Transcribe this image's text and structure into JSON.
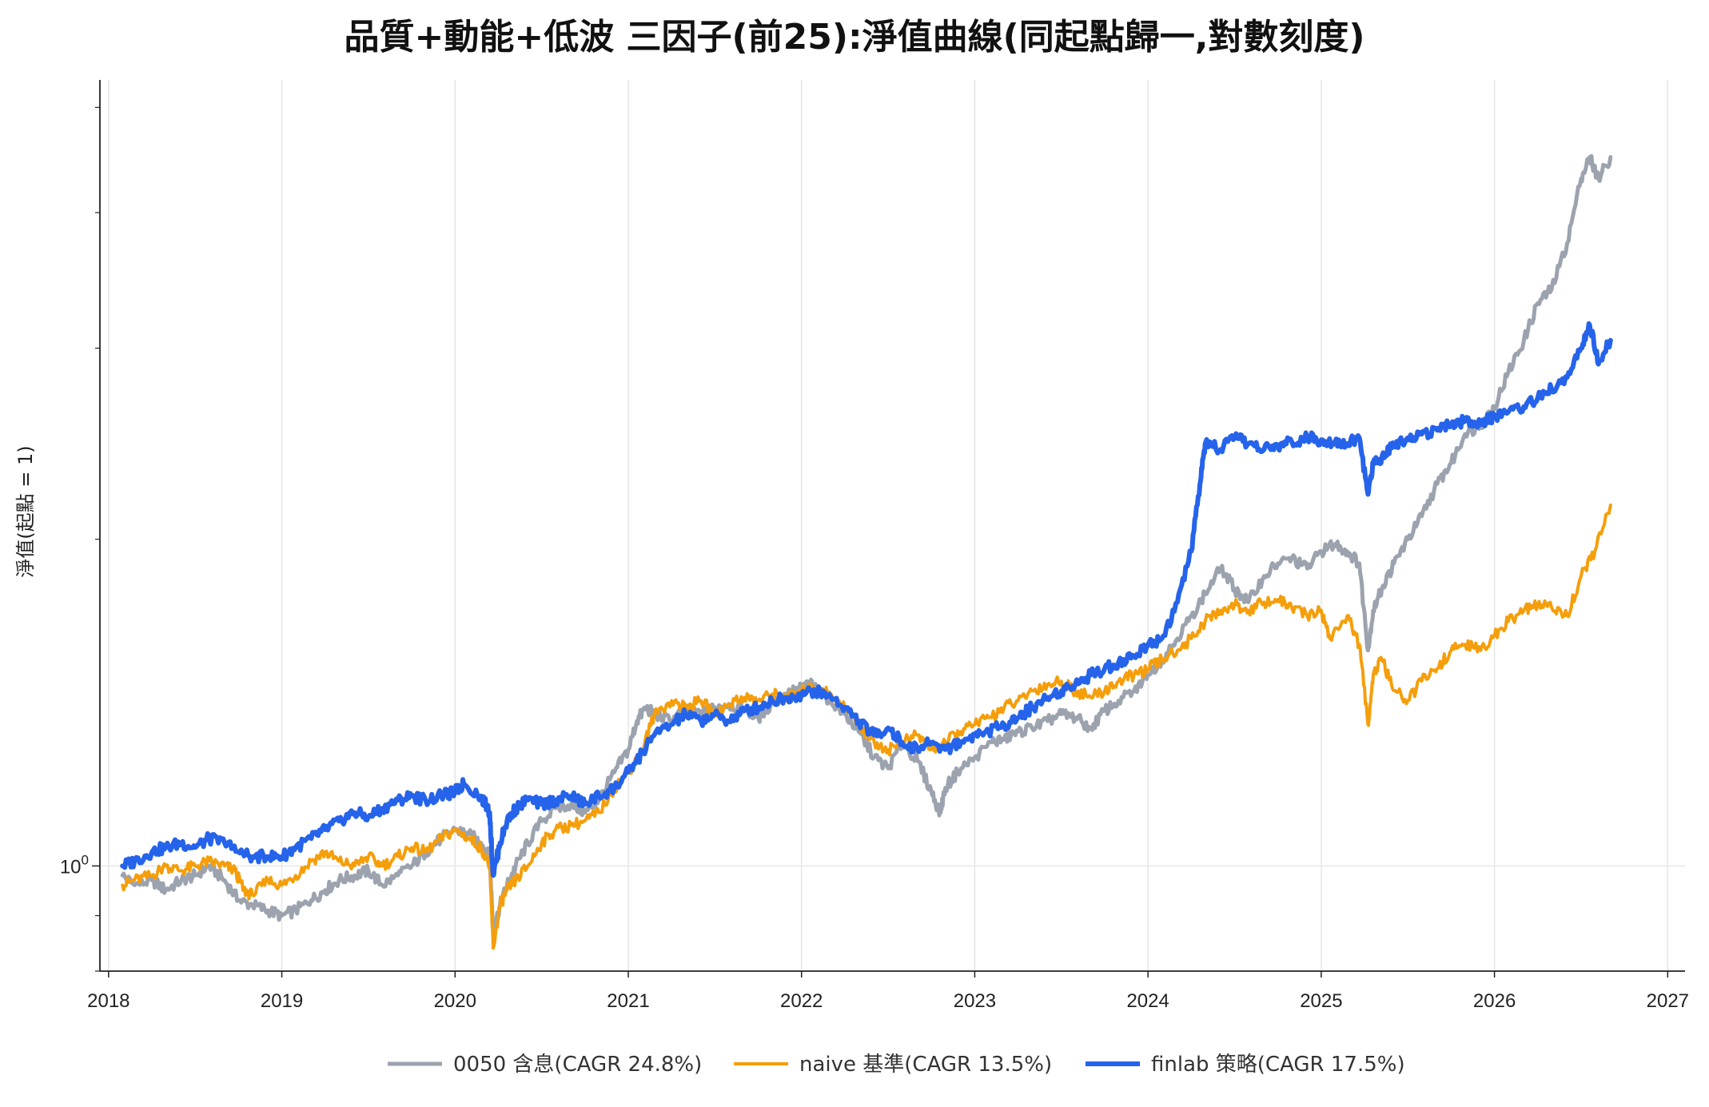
{
  "chart_data": {
    "type": "line",
    "title": "品質+動能+低波 三因子(前25):淨值曲線(同起點歸一,對數刻度)",
    "ylabel": "淨值(起點 = 1)",
    "xlabel": "",
    "yscale": "log",
    "ylim": [
      0.8,
      5.3
    ],
    "xlim": [
      2017.95,
      2027.1
    ],
    "grid": true,
    "legend_position": "bottom-center",
    "x_ticks": [
      "2018",
      "2019",
      "2020",
      "2021",
      "2022",
      "2023",
      "2024",
      "2025",
      "2026",
      "2027"
    ],
    "y_tick_labels": [
      {
        "value": 1,
        "base": "10",
        "exp": "0"
      }
    ],
    "series": [
      {
        "name": "0050 含息(CAGR 24.8%)",
        "color": "#9ca3af",
        "width": 5,
        "x": [
          2018.08,
          2018.15,
          2018.25,
          2018.33,
          2018.42,
          2018.5,
          2018.58,
          2018.67,
          2018.75,
          2018.83,
          2018.92,
          2019.0,
          2019.08,
          2019.17,
          2019.25,
          2019.33,
          2019.42,
          2019.5,
          2019.58,
          2019.67,
          2019.75,
          2019.83,
          2019.92,
          2020.0,
          2020.08,
          2020.15,
          2020.2,
          2020.22,
          2020.26,
          2020.3,
          2020.35,
          2020.42,
          2020.5,
          2020.58,
          2020.67,
          2020.75,
          2020.83,
          2020.92,
          2021.0,
          2021.05,
          2021.1,
          2021.15,
          2021.25,
          2021.33,
          2021.42,
          2021.5,
          2021.58,
          2021.67,
          2021.75,
          2021.83,
          2021.92,
          2022.0,
          2022.05,
          2022.1,
          2022.17,
          2022.25,
          2022.33,
          2022.42,
          2022.5,
          2022.58,
          2022.67,
          2022.75,
          2022.8,
          2022.83,
          2022.9,
          2023.0,
          2023.1,
          2023.17,
          2023.25,
          2023.33,
          2023.42,
          2023.5,
          2023.58,
          2023.67,
          2023.75,
          2023.83,
          2023.92,
          2024.0,
          2024.08,
          2024.17,
          2024.25,
          2024.33,
          2024.42,
          2024.5,
          2024.58,
          2024.67,
          2024.75,
          2024.83,
          2024.92,
          2025.0,
          2025.08,
          2025.15,
          2025.22,
          2025.27,
          2025.3,
          2025.35,
          2025.42,
          2025.5,
          2025.58,
          2025.67,
          2025.75,
          2025.83,
          2025.92,
          2026.0,
          2026.08,
          2026.17,
          2026.25,
          2026.33,
          2026.42,
          2026.5,
          2026.55,
          2026.6,
          2026.67
        ],
        "values": [
          0.98,
          0.96,
          0.97,
          0.95,
          0.97,
          0.98,
          1.0,
          0.97,
          0.93,
          0.92,
          0.91,
          0.9,
          0.91,
          0.93,
          0.95,
          0.97,
          0.98,
          0.99,
          0.96,
          0.98,
          1.0,
          1.03,
          1.06,
          1.08,
          1.07,
          1.05,
          1.02,
          0.87,
          0.92,
          0.96,
          1.0,
          1.05,
          1.1,
          1.13,
          1.14,
          1.12,
          1.15,
          1.22,
          1.28,
          1.36,
          1.4,
          1.38,
          1.36,
          1.4,
          1.38,
          1.4,
          1.41,
          1.39,
          1.37,
          1.41,
          1.44,
          1.46,
          1.47,
          1.45,
          1.42,
          1.38,
          1.33,
          1.26,
          1.23,
          1.3,
          1.25,
          1.17,
          1.12,
          1.18,
          1.22,
          1.26,
          1.3,
          1.31,
          1.33,
          1.34,
          1.36,
          1.38,
          1.37,
          1.34,
          1.39,
          1.42,
          1.45,
          1.5,
          1.55,
          1.62,
          1.7,
          1.78,
          1.88,
          1.8,
          1.75,
          1.85,
          1.9,
          1.92,
          1.88,
          1.95,
          1.98,
          1.95,
          1.9,
          1.58,
          1.72,
          1.8,
          1.9,
          2.0,
          2.1,
          2.25,
          2.35,
          2.5,
          2.55,
          2.65,
          2.85,
          3.05,
          3.3,
          3.4,
          3.75,
          4.3,
          4.5,
          4.3,
          4.5
        ]
      },
      {
        "name": "naive 基準(CAGR 13.5%)",
        "color": "#f59e0b",
        "width": 4,
        "x": [
          2018.08,
          2018.15,
          2018.25,
          2018.33,
          2018.42,
          2018.5,
          2018.58,
          2018.67,
          2018.73,
          2018.78,
          2018.83,
          2018.92,
          2019.0,
          2019.08,
          2019.17,
          2019.25,
          2019.33,
          2019.42,
          2019.5,
          2019.58,
          2019.67,
          2019.75,
          2019.83,
          2019.92,
          2020.0,
          2020.08,
          2020.15,
          2020.2,
          2020.22,
          2020.26,
          2020.3,
          2020.35,
          2020.42,
          2020.5,
          2020.58,
          2020.67,
          2020.75,
          2020.83,
          2020.92,
          2021.0,
          2021.08,
          2021.15,
          2021.25,
          2021.33,
          2021.42,
          2021.5,
          2021.58,
          2021.67,
          2021.75,
          2021.83,
          2021.92,
          2022.0,
          2022.08,
          2022.17,
          2022.25,
          2022.33,
          2022.42,
          2022.5,
          2022.58,
          2022.67,
          2022.75,
          2022.83,
          2022.92,
          2023.0,
          2023.08,
          2023.17,
          2023.25,
          2023.33,
          2023.42,
          2023.5,
          2023.58,
          2023.67,
          2023.75,
          2023.83,
          2023.92,
          2024.0,
          2024.08,
          2024.17,
          2024.25,
          2024.33,
          2024.42,
          2024.5,
          2024.58,
          2024.67,
          2024.75,
          2024.83,
          2024.92,
          2025.0,
          2025.05,
          2025.15,
          2025.22,
          2025.27,
          2025.3,
          2025.35,
          2025.42,
          2025.5,
          2025.58,
          2025.67,
          2025.75,
          2025.83,
          2025.92,
          2026.0,
          2026.08,
          2026.17,
          2026.25,
          2026.33,
          2026.42,
          2026.5,
          2026.58,
          2026.67
        ],
        "values": [
          0.96,
          0.97,
          0.98,
          1.0,
          0.99,
          1.0,
          1.01,
          1.0,
          0.99,
          0.95,
          0.94,
          0.97,
          0.96,
          0.98,
          1.01,
          1.03,
          1.01,
          1.0,
          1.02,
          1.0,
          1.02,
          1.04,
          1.03,
          1.06,
          1.08,
          1.06,
          1.04,
          1.0,
          0.84,
          0.92,
          0.95,
          0.97,
          1.0,
          1.05,
          1.08,
          1.09,
          1.1,
          1.12,
          1.18,
          1.22,
          1.28,
          1.38,
          1.42,
          1.4,
          1.42,
          1.38,
          1.41,
          1.43,
          1.42,
          1.44,
          1.43,
          1.45,
          1.46,
          1.44,
          1.4,
          1.35,
          1.3,
          1.28,
          1.3,
          1.32,
          1.28,
          1.3,
          1.33,
          1.35,
          1.37,
          1.4,
          1.42,
          1.45,
          1.47,
          1.48,
          1.45,
          1.43,
          1.45,
          1.48,
          1.5,
          1.52,
          1.55,
          1.58,
          1.62,
          1.68,
          1.72,
          1.74,
          1.72,
          1.75,
          1.76,
          1.73,
          1.7,
          1.72,
          1.62,
          1.7,
          1.6,
          1.35,
          1.5,
          1.55,
          1.45,
          1.42,
          1.48,
          1.52,
          1.58,
          1.6,
          1.58,
          1.63,
          1.68,
          1.72,
          1.74,
          1.73,
          1.7,
          1.85,
          1.95,
          2.15
        ]
      },
      {
        "name": "finlab 策略(CAGR 17.5%)",
        "color": "#2563eb",
        "width": 6,
        "x": [
          2018.08,
          2018.15,
          2018.25,
          2018.33,
          2018.42,
          2018.5,
          2018.58,
          2018.67,
          2018.75,
          2018.83,
          2018.92,
          2019.0,
          2019.08,
          2019.17,
          2019.25,
          2019.33,
          2019.42,
          2019.5,
          2019.58,
          2019.67,
          2019.75,
          2019.83,
          2019.92,
          2020.0,
          2020.05,
          2020.15,
          2020.2,
          2020.22,
          2020.26,
          2020.3,
          2020.35,
          2020.42,
          2020.5,
          2020.58,
          2020.67,
          2020.75,
          2020.83,
          2020.92,
          2021.0,
          2021.08,
          2021.15,
          2021.25,
          2021.33,
          2021.42,
          2021.5,
          2021.58,
          2021.67,
          2021.75,
          2021.83,
          2021.92,
          2022.0,
          2022.08,
          2022.17,
          2022.25,
          2022.33,
          2022.42,
          2022.5,
          2022.58,
          2022.67,
          2022.75,
          2022.83,
          2022.92,
          2023.0,
          2023.08,
          2023.17,
          2023.25,
          2023.33,
          2023.42,
          2023.5,
          2023.58,
          2023.67,
          2023.75,
          2023.83,
          2023.92,
          2024.0,
          2024.08,
          2024.17,
          2024.25,
          2024.3,
          2024.33,
          2024.42,
          2024.5,
          2024.58,
          2024.67,
          2024.75,
          2024.83,
          2024.92,
          2025.0,
          2025.08,
          2025.15,
          2025.22,
          2025.27,
          2025.3,
          2025.35,
          2025.42,
          2025.5,
          2025.58,
          2025.67,
          2025.75,
          2025.83,
          2025.92,
          2026.0,
          2026.08,
          2026.17,
          2026.25,
          2026.33,
          2026.42,
          2026.5,
          2026.55,
          2026.6,
          2026.67
        ],
        "values": [
          1.0,
          1.01,
          1.03,
          1.04,
          1.05,
          1.04,
          1.06,
          1.05,
          1.03,
          1.02,
          1.02,
          1.02,
          1.04,
          1.06,
          1.08,
          1.1,
          1.12,
          1.11,
          1.13,
          1.15,
          1.16,
          1.15,
          1.16,
          1.17,
          1.19,
          1.16,
          1.12,
          0.98,
          1.05,
          1.1,
          1.13,
          1.15,
          1.14,
          1.15,
          1.16,
          1.14,
          1.16,
          1.18,
          1.22,
          1.27,
          1.32,
          1.35,
          1.38,
          1.36,
          1.38,
          1.36,
          1.39,
          1.4,
          1.42,
          1.43,
          1.44,
          1.45,
          1.43,
          1.4,
          1.36,
          1.32,
          1.34,
          1.3,
          1.28,
          1.3,
          1.28,
          1.3,
          1.32,
          1.33,
          1.35,
          1.37,
          1.4,
          1.43,
          1.45,
          1.47,
          1.5,
          1.52,
          1.54,
          1.56,
          1.6,
          1.62,
          1.75,
          1.95,
          2.25,
          2.45,
          2.42,
          2.48,
          2.45,
          2.42,
          2.44,
          2.46,
          2.48,
          2.47,
          2.46,
          2.45,
          2.48,
          2.2,
          2.35,
          2.38,
          2.45,
          2.48,
          2.5,
          2.52,
          2.55,
          2.57,
          2.55,
          2.6,
          2.62,
          2.65,
          2.7,
          2.75,
          2.82,
          3.0,
          3.15,
          2.9,
          3.05
        ]
      }
    ]
  }
}
